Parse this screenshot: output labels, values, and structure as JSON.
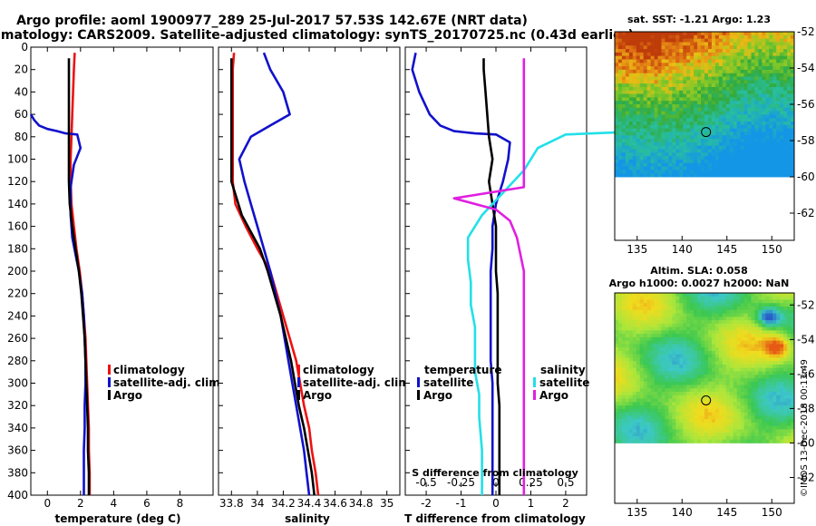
{
  "header": {
    "title_line1": "Argo profile: aoml 1900977_289 25-Jul-2017 57.53S 142.67E (NRT data)",
    "title_line2": "Climatology: CARS2009. Satellite-adjusted climatology: synTS_20170725.nc (0.43d earlier)"
  },
  "colors": {
    "climatology": "#ee1111",
    "satellite": "#1111cc",
    "argo": "#000000",
    "sal_satellite": "#22e0e8",
    "sal_argo": "#e020e0"
  },
  "chart_data": [
    {
      "type": "line",
      "id": "temperature",
      "xlabel": "temperature (deg C)",
      "ylabel": "",
      "xlim": [
        -1,
        10
      ],
      "ylim": [
        400,
        0
      ],
      "xticks": [
        "0",
        "2",
        "4",
        "6",
        "8"
      ],
      "xtick_values": [
        0,
        2,
        4,
        6,
        8
      ],
      "yticks": [
        "0",
        "20",
        "40",
        "60",
        "80",
        "100",
        "120",
        "140",
        "160",
        "180",
        "200",
        "220",
        "240",
        "260",
        "280",
        "300",
        "320",
        "340",
        "360",
        "380",
        "400"
      ],
      "ytick_values": [
        0,
        20,
        40,
        60,
        80,
        100,
        120,
        140,
        160,
        180,
        200,
        220,
        240,
        260,
        280,
        300,
        320,
        340,
        360,
        380,
        400
      ],
      "legend": [
        "climatology",
        "satellite-adj. clim.",
        "Argo"
      ],
      "series": [
        {
          "name": "climatology",
          "x": [
            1.65,
            1.6,
            1.55,
            1.5,
            1.45,
            1.4,
            1.4,
            1.45,
            1.6,
            1.75,
            1.95,
            2.1,
            2.2,
            2.3,
            2.35,
            2.4,
            2.45,
            2.5,
            2.5,
            2.55,
            2.55,
            2.55
          ],
          "y": [
            5,
            20,
            40,
            60,
            80,
            100,
            120,
            140,
            160,
            180,
            200,
            220,
            240,
            260,
            280,
            300,
            320,
            340,
            360,
            380,
            395,
            400
          ]
        },
        {
          "name": "satellite-adj. clim.",
          "x": [
            -1.0,
            -0.8,
            -0.5,
            0.0,
            0.6,
            1.1,
            1.8,
            2.0,
            1.6,
            1.4,
            1.4,
            1.5,
            1.7,
            1.9,
            2.1,
            2.2,
            2.25,
            2.3,
            2.3,
            2.25,
            2.25,
            2.2,
            2.2,
            2.2
          ],
          "y": [
            60,
            65,
            70,
            73,
            75,
            77,
            78,
            90,
            105,
            125,
            150,
            170,
            185,
            200,
            220,
            240,
            260,
            280,
            300,
            320,
            340,
            360,
            380,
            400
          ]
        },
        {
          "name": "Argo",
          "x": [
            1.3,
            1.3,
            1.3,
            1.3,
            1.3,
            1.3,
            1.3,
            1.35,
            1.5,
            1.7,
            1.9,
            2.05,
            2.15,
            2.25,
            2.3,
            2.35,
            2.4,
            2.45,
            2.45,
            2.5,
            2.5,
            2.5
          ],
          "y": [
            10,
            20,
            40,
            60,
            80,
            100,
            120,
            140,
            160,
            180,
            200,
            220,
            240,
            260,
            280,
            300,
            320,
            340,
            360,
            380,
            395,
            400
          ]
        }
      ]
    },
    {
      "type": "line",
      "id": "salinity",
      "xlabel": "salinity",
      "ylabel": "",
      "xlim": [
        33.7,
        35.1
      ],
      "ylim": [
        400,
        0
      ],
      "xticks": [
        "33.8",
        "34",
        "34.2",
        "34.4",
        "34.6",
        "34.8",
        "35"
      ],
      "xtick_values": [
        33.8,
        34,
        34.2,
        34.4,
        34.6,
        34.8,
        35
      ],
      "legend": [
        "climatology",
        "satellite-adj. clim.",
        "Argo"
      ],
      "series": [
        {
          "name": "climatology",
          "x": [
            33.82,
            33.81,
            33.81,
            33.81,
            33.81,
            33.81,
            33.81,
            33.83,
            33.91,
            34.0,
            34.1,
            34.15,
            34.2,
            34.25,
            34.3,
            34.33,
            34.36,
            34.4,
            34.42,
            34.45,
            34.47
          ],
          "y": [
            5,
            20,
            40,
            60,
            80,
            100,
            120,
            140,
            160,
            180,
            200,
            220,
            240,
            260,
            280,
            300,
            320,
            340,
            360,
            380,
            400
          ]
        },
        {
          "name": "satellite-adj. clim.",
          "x": [
            34.05,
            34.1,
            34.2,
            34.25,
            34.1,
            33.95,
            33.86,
            33.9,
            33.95,
            34.0,
            34.05,
            34.1,
            34.14,
            34.18,
            34.21,
            34.24,
            34.27,
            34.3,
            34.33,
            34.36,
            34.38,
            34.4
          ],
          "y": [
            5,
            20,
            40,
            60,
            70,
            80,
            100,
            120,
            140,
            160,
            180,
            200,
            220,
            240,
            260,
            280,
            300,
            320,
            340,
            360,
            380,
            400
          ]
        },
        {
          "name": "Argo",
          "x": [
            33.8,
            33.8,
            33.8,
            33.8,
            33.8,
            33.8,
            33.8,
            33.84,
            33.88,
            33.95,
            34.02,
            34.08,
            34.13,
            34.18,
            34.22,
            34.26,
            34.29,
            34.32,
            34.36,
            34.39,
            34.42,
            34.44
          ],
          "y": [
            10,
            20,
            40,
            60,
            80,
            100,
            120,
            135,
            150,
            165,
            180,
            200,
            220,
            240,
            260,
            280,
            300,
            320,
            340,
            360,
            380,
            400
          ]
        }
      ]
    },
    {
      "type": "line",
      "id": "difference",
      "xlabel": "T difference from climatology",
      "ylabel": "",
      "top_label": "S difference from climatology",
      "xlim": [
        -2.6,
        2.6
      ],
      "ylim": [
        400,
        0
      ],
      "xticks": [
        "-2",
        "-1",
        "0",
        "1",
        "2"
      ],
      "xtick_values": [
        -2,
        -1,
        0,
        1,
        2
      ],
      "sticks": [
        "-0.5",
        "-0.25",
        "0",
        "0.25",
        "0.5"
      ],
      "stick_values": [
        -0.5,
        -0.25,
        0,
        0.25,
        0.5
      ],
      "s_scale": 4,
      "legend_temperature": {
        "title": "temperature",
        "items": [
          "satellite",
          "Argo"
        ]
      },
      "legend_salinity": {
        "title": "salinity",
        "items": [
          "satellite",
          "Argo"
        ]
      },
      "series": [
        {
          "name": "T satellite",
          "x": [
            -2.3,
            -2.4,
            -2.2,
            -1.9,
            -1.6,
            -1.2,
            -0.6,
            0.0,
            0.4,
            0.35,
            0.2,
            0.0,
            -0.1,
            -0.1,
            -0.15,
            -0.15,
            -0.15,
            -0.15,
            -0.15,
            -0.1,
            -0.1,
            -0.1,
            -0.1
          ],
          "y": [
            5,
            20,
            40,
            60,
            70,
            75,
            77,
            78,
            85,
            100,
            120,
            140,
            160,
            180,
            200,
            220,
            240,
            260,
            280,
            300,
            340,
            370,
            400
          ]
        },
        {
          "name": "T Argo",
          "x": [
            -0.35,
            -0.35,
            -0.3,
            -0.25,
            -0.2,
            -0.1,
            -0.2,
            -0.1,
            0.0,
            0.0,
            0.0,
            0.05,
            0.05,
            0.05,
            0.05,
            0.05,
            0.1,
            0.1,
            0.1,
            0.1,
            0.1,
            0.1
          ],
          "y": [
            10,
            20,
            40,
            60,
            80,
            100,
            120,
            140,
            160,
            180,
            200,
            220,
            240,
            260,
            280,
            300,
            320,
            340,
            360,
            380,
            395,
            400
          ]
        },
        {
          "name": "S satellite",
          "x": [
            1.1,
            1.3,
            1.5,
            1.8,
            1.7,
            0.5,
            0.3,
            0.2,
            0.05,
            -0.1,
            -0.2,
            -0.2,
            -0.18,
            -0.18,
            -0.15,
            -0.15,
            -0.15,
            -0.12,
            -0.12,
            -0.1,
            -0.1,
            -0.1
          ],
          "y": [
            5,
            20,
            40,
            60,
            72,
            78,
            90,
            110,
            130,
            150,
            170,
            190,
            210,
            230,
            250,
            270,
            290,
            310,
            330,
            360,
            380,
            400
          ]
        },
        {
          "name": "S Argo",
          "x": [
            0.2,
            0.2,
            0.2,
            0.2,
            0.2,
            0.2,
            0.2,
            0.2,
            -0.3,
            0.0,
            0.1,
            0.15,
            0.2,
            0.2,
            0.2,
            0.2,
            0.2,
            0.2
          ],
          "y": [
            10,
            20,
            40,
            60,
            80,
            100,
            120,
            125,
            135,
            145,
            155,
            170,
            200,
            240,
            280,
            320,
            360,
            400
          ]
        }
      ]
    },
    {
      "type": "heatmap",
      "id": "sst_map",
      "title": "sat. SST: -1.21 Argo: 1.23",
      "xticks": [
        "135",
        "140",
        "145",
        "150"
      ],
      "xtick_values": [
        135,
        140,
        145,
        150
      ],
      "yticks": [
        "-52",
        "-54",
        "-56",
        "-58",
        "-60",
        "-62"
      ],
      "ytick_values": [
        -52,
        -54,
        -56,
        -58,
        -60,
        -62
      ],
      "xlim": [
        132.5,
        152.5
      ],
      "ylim": [
        -63.5,
        -52
      ],
      "data_lat_range": [
        -60,
        -52
      ],
      "argo_position": [
        142.67,
        -57.53
      ]
    },
    {
      "type": "heatmap",
      "id": "sla_map",
      "title_line1": "Altim. SLA: 0.058",
      "title_line2": "Argo h1000: 0.0027 h2000: NaN",
      "xticks": [
        "135",
        "140",
        "145",
        "150"
      ],
      "xtick_values": [
        135,
        140,
        145,
        150
      ],
      "yticks": [
        "-52",
        "-54",
        "-56",
        "-58",
        "-60",
        "-62"
      ],
      "ytick_values": [
        -52,
        -54,
        -56,
        -58,
        -60,
        -62
      ],
      "xlim": [
        132.5,
        152.5
      ],
      "ylim": [
        -63.5,
        -51.3
      ],
      "data_lat_range": [
        -60,
        -51.3
      ],
      "argo_position": [
        142.67,
        -57.53
      ]
    }
  ],
  "credit": "©IMOS 13-Dec-2018 00:13:49"
}
